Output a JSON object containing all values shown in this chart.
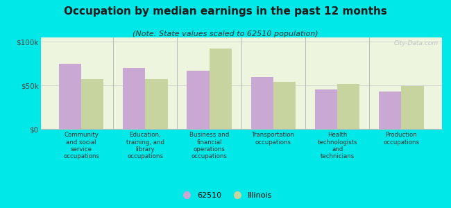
{
  "title": "Occupation by median earnings in the past 12 months",
  "subtitle": "(Note: State values scaled to 62510 population)",
  "categories": [
    "Community\nand social\nservice\noccupations",
    "Education,\ntraining, and\nlibrary\noccupations",
    "Business and\nfinancial\noperations\noccupations",
    "Transportation\noccupations",
    "Health\ntechnologists\nand\ntechnicians",
    "Production\noccupations"
  ],
  "values_62510": [
    75000,
    70000,
    67000,
    60000,
    45000,
    43000
  ],
  "values_illinois": [
    57000,
    57000,
    92000,
    54000,
    52000,
    49000
  ],
  "color_62510": "#c9a8d4",
  "color_illinois": "#c8d4a0",
  "background_outer": "#00e8e8",
  "background_inner": "#edf5df",
  "yticks": [
    0,
    50000,
    100000
  ],
  "ytick_labels": [
    "$0",
    "$50k",
    "$100k"
  ],
  "ylim": [
    0,
    105000
  ],
  "legend_label_62510": "62510",
  "legend_label_illinois": "Illinois",
  "watermark": "City-Data.com",
  "title_fontsize": 11,
  "subtitle_fontsize": 8,
  "bar_width": 0.35
}
